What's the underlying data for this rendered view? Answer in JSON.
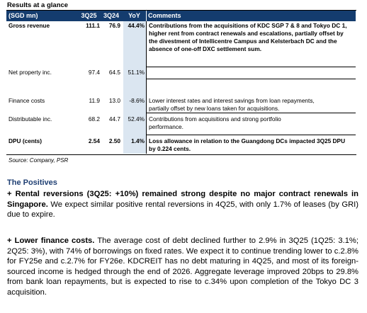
{
  "title": "Results at a glance",
  "table": {
    "header": [
      "(SGD mn)",
      "3Q25",
      "3Q24",
      "YoY",
      "Comments"
    ],
    "rows": [
      {
        "label": "Gross revenue",
        "v1": "111.1",
        "v2": "76.9",
        "yoy": "44.4%",
        "bold": true,
        "comment": [
          "Contributions from the acquisitions of KDC SGP 7 & 8 and Tokyo DC 1,",
          "higher rent from contract renewals and escalations, partially offset by",
          "the divestment of Intellicentre Campus and Kelsterbach DC and the",
          "absence of one-off DXC settlement sum."
        ]
      },
      {
        "label": "Net property inc.",
        "v1": "97.4",
        "v2": "64.5",
        "yoy": "51.1%",
        "bold": false,
        "comment": []
      },
      {
        "label": "Finance costs",
        "v1": "11.9",
        "v2": "13.0",
        "yoy": "-8.6%",
        "bold": false,
        "comment": [
          "Lower interest rates and interest savings from loan repayments,",
          "partially offset by new loans taken for acquisitions."
        ]
      },
      {
        "label": "Distributable inc.",
        "v1": "68.2",
        "v2": "44.7",
        "yoy": "52.4%",
        "bold": false,
        "comment": [
          "Contributions from acquisitions and strong portfolio",
          "performance."
        ]
      },
      {
        "label": "DPU (cents)",
        "v1": "2.54",
        "v2": "2.50",
        "yoy": "1.4%",
        "bold": true,
        "comment": [
          "Loss allowance in relation to the Guangdong DCs impacted 3Q25 DPU",
          "by 0.224 cents."
        ]
      }
    ]
  },
  "source": "Source: Company, PSR",
  "positives_heading": "The Positives",
  "para1": {
    "lead": "+ Rental reversions (3Q25: +10%) remained strong despite no major contract renewals in Singapore.",
    "body": " We expect similar positive rental reversions in 4Q25, with only 1.7% of leases (by GRI) due to expire."
  },
  "para2": {
    "lead": "+ Lower finance costs.",
    "body": " The average cost of debt declined further to 2.9% in 3Q25 (1Q25: 3.1%; 2Q25: 3%), with 74% of borrowings on fixed rates. We expect it to continue trending lower to c.2.8% for FY25e and c.2.7% for FY26e. KDCREIT has no debt maturing in 4Q25, and most of its foreign-sourced income is hedged through the end of 2026. Aggregate leverage improved 20bps to 29.8% from bank loan repayments, but is expected to rise to c.34% upon completion of the Tokyo DC 3 acquisition."
  }
}
